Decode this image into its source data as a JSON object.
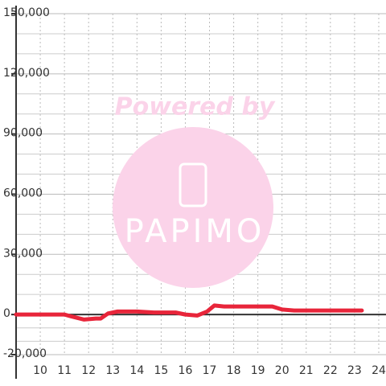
{
  "chart_data": {
    "type": "line",
    "x": [
      9,
      11,
      11.3,
      11.8,
      12.3,
      12.5,
      12.8,
      13.2,
      14,
      14.7,
      15.6,
      16,
      16.5,
      16.9,
      17.2,
      17.6,
      18.5,
      19.6,
      20,
      20.5,
      23.3
    ],
    "values": [
      0,
      0,
      -1000,
      -2500,
      -2000,
      -2000,
      500,
      1500,
      1500,
      1000,
      1000,
      0,
      -500,
      1500,
      4500,
      4000,
      4000,
      4000,
      2500,
      2000,
      2000
    ],
    "color": "#e8253a",
    "xlim": [
      9,
      24.3
    ],
    "ylim": [
      -20000,
      150000
    ],
    "xticks": [
      10,
      11,
      12,
      13,
      14,
      15,
      16,
      17,
      18,
      19,
      20,
      21,
      22,
      23,
      24
    ],
    "yticks": [
      {
        "value": -20000,
        "label": "-20,000"
      },
      0,
      {
        "value": 30000,
        "label": "30,000"
      },
      {
        "value": 60000,
        "label": "60,000"
      },
      {
        "value": 90000,
        "label": "90,000"
      },
      {
        "value": 120000,
        "label": "120,000"
      },
      {
        "value": 150000,
        "label": "150,000"
      }
    ],
    "grid": true,
    "watermark": {
      "line1": "Powered by",
      "line2": "PAPIMO"
    }
  }
}
